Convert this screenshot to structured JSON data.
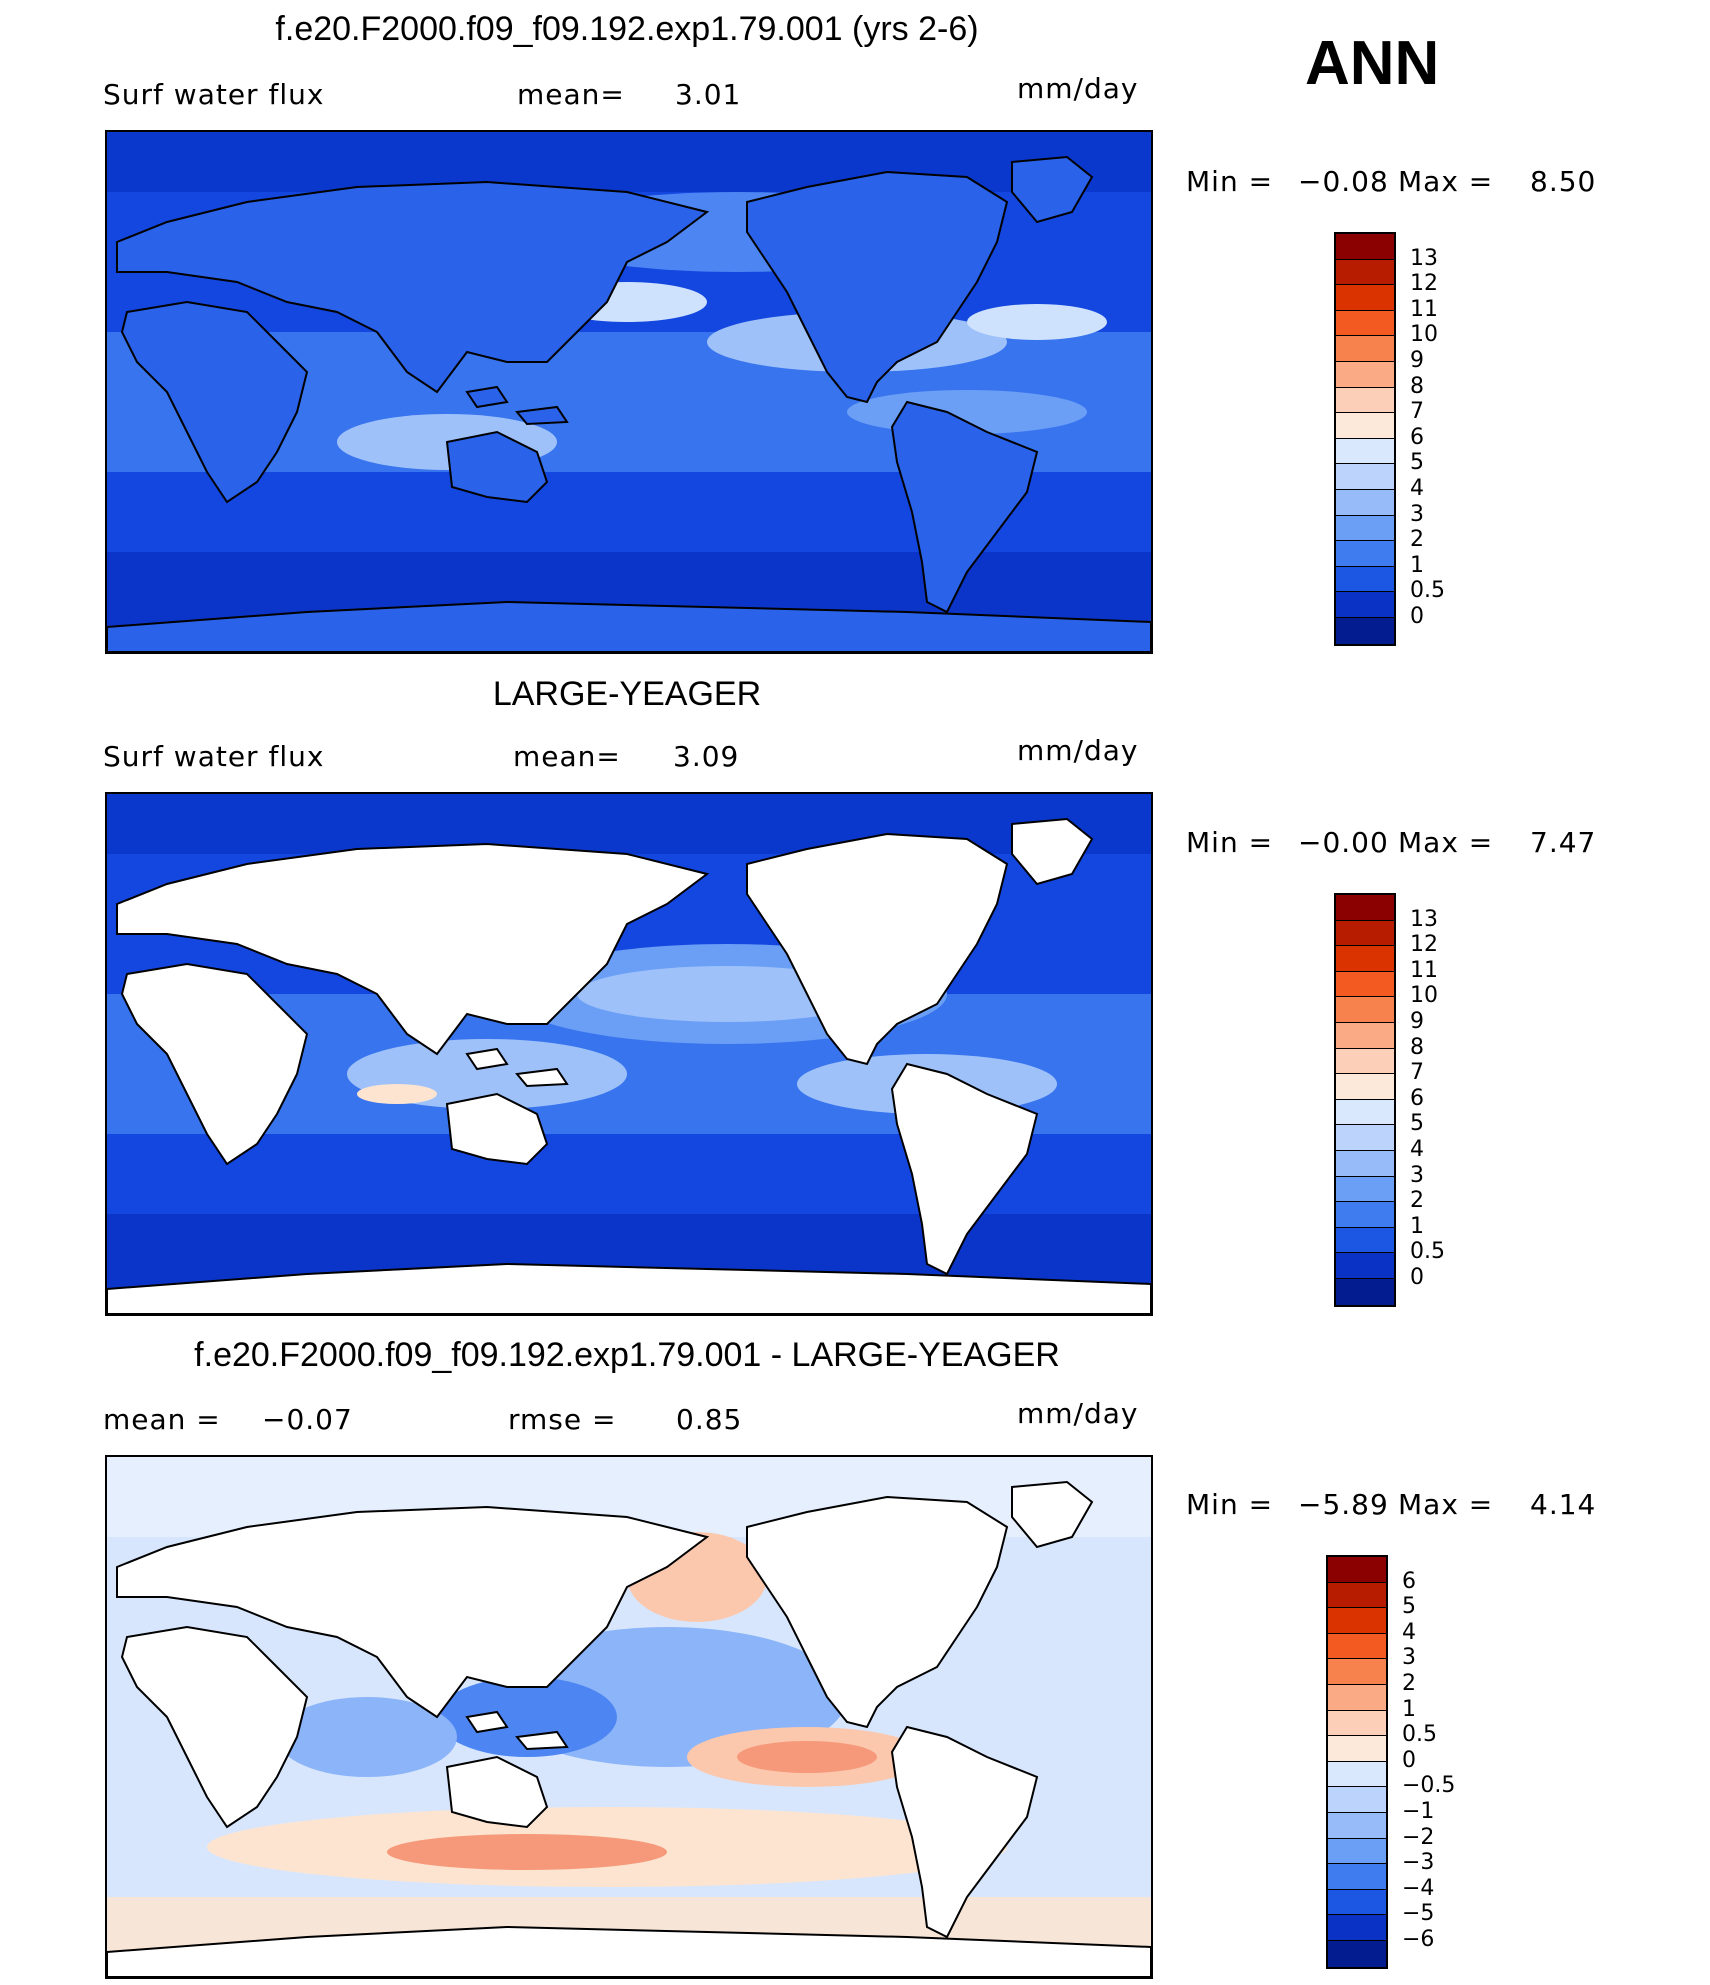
{
  "season": "ANN",
  "units": "mm/day",
  "panels": [
    {
      "title": "f.e20.F2000.f09_f09.192.exp1.79.001 (yrs 2-6)",
      "left_label": "Surf  water  flux",
      "stat_label": "mean=",
      "stat_value": "3.01",
      "minmax": {
        "min_label": "Min  =",
        "min": "−0.08",
        "max_label": "Max  =",
        "max": "8.50"
      },
      "ocean_base": "#1347e0",
      "blobs": [
        {
          "cx": 630,
          "cy": 100,
          "rx": 210,
          "ry": 40,
          "c": "#4d86f2"
        },
        {
          "cx": 750,
          "cy": 210,
          "rx": 150,
          "ry": 30,
          "c": "#9ec1fa"
        },
        {
          "cx": 340,
          "cy": 310,
          "rx": 110,
          "ry": 28,
          "c": "#9ec1fa"
        },
        {
          "cx": 860,
          "cy": 280,
          "rx": 120,
          "ry": 22,
          "c": "#6b9ff6"
        },
        {
          "cx": 520,
          "cy": 170,
          "rx": 80,
          "ry": 20,
          "c": "#cfe2fd"
        },
        {
          "cx": 930,
          "cy": 190,
          "rx": 70,
          "ry": 18,
          "c": "#cfe2fd"
        }
      ],
      "has_land_white": false
    },
    {
      "title": "LARGE-YEAGER",
      "left_label": "Surf  water  flux",
      "stat_label": "mean=",
      "stat_value": "3.09",
      "minmax": {
        "min_label": "Min  =",
        "min": "−0.00",
        "max_label": "Max  =",
        "max": "7.47"
      },
      "ocean_base": "#1347e0",
      "blobs": [
        {
          "cx": 620,
          "cy": 200,
          "rx": 220,
          "ry": 50,
          "c": "#6b9ff6"
        },
        {
          "cx": 620,
          "cy": 200,
          "rx": 150,
          "ry": 28,
          "c": "#9ec1fa"
        },
        {
          "cx": 380,
          "cy": 280,
          "rx": 140,
          "ry": 35,
          "c": "#9ec1fa"
        },
        {
          "cx": 820,
          "cy": 290,
          "rx": 130,
          "ry": 30,
          "c": "#9ec1fa"
        },
        {
          "cx": 290,
          "cy": 300,
          "rx": 40,
          "ry": 10,
          "c": "#fde4d0"
        }
      ],
      "has_land_white": true
    },
    {
      "title": "f.e20.F2000.f09_f09.192.exp1.79.001 - LARGE-YEAGER",
      "left_label": "mean  =",
      "left_value": "−0.07",
      "stat_label": "rmse  =",
      "stat_value": "0.85",
      "minmax": {
        "min_label": "Min  =",
        "min": "−5.89",
        "max_label": "Max  =",
        "max": "4.14"
      },
      "ocean_base": "#d7e6fd",
      "blobs": [
        {
          "cx": 560,
          "cy": 240,
          "rx": 180,
          "ry": 70,
          "c": "#8cb4f8"
        },
        {
          "cx": 420,
          "cy": 260,
          "rx": 90,
          "ry": 40,
          "c": "#4d86f2"
        },
        {
          "cx": 260,
          "cy": 280,
          "rx": 90,
          "ry": 40,
          "c": "#8cb4f8"
        },
        {
          "cx": 700,
          "cy": 300,
          "rx": 120,
          "ry": 30,
          "c": "#fbc8ae"
        },
        {
          "cx": 700,
          "cy": 300,
          "rx": 70,
          "ry": 16,
          "c": "#f6997a"
        },
        {
          "cx": 590,
          "cy": 120,
          "rx": 70,
          "ry": 45,
          "c": "#fbc8ae"
        },
        {
          "cx": 500,
          "cy": 390,
          "rx": 400,
          "ry": 40,
          "c": "#fde4d0"
        },
        {
          "cx": 420,
          "cy": 395,
          "rx": 140,
          "ry": 18,
          "c": "#f6997a"
        }
      ],
      "has_land_white": true
    }
  ],
  "colorbars": [
    {
      "colors": [
        "#8b0000",
        "#b71c00",
        "#db3300",
        "#f25a22",
        "#f8824d",
        "#fbaa86",
        "#fcd0b8",
        "#fde9da",
        "#d9e8fd",
        "#bcd3fb",
        "#96bbf8",
        "#6b9ff6",
        "#3f7cf0",
        "#1c57e4",
        "#0a32c4",
        "#031c8f"
      ],
      "labels": [
        "13",
        "12",
        "11",
        "10",
        "9",
        "8",
        "7",
        "6",
        "5",
        "4",
        "3",
        "2",
        "1",
        "0.5",
        "0"
      ]
    },
    {
      "colors": [
        "#8b0000",
        "#b71c00",
        "#db3300",
        "#f25a22",
        "#f8824d",
        "#fbaa86",
        "#fcd0b8",
        "#fde9da",
        "#d9e8fd",
        "#bcd3fb",
        "#96bbf8",
        "#6b9ff6",
        "#3f7cf0",
        "#1c57e4",
        "#0a32c4",
        "#031c8f"
      ],
      "labels": [
        "13",
        "12",
        "11",
        "10",
        "9",
        "8",
        "7",
        "6",
        "5",
        "4",
        "3",
        "2",
        "1",
        "0.5",
        "0"
      ]
    },
    {
      "colors": [
        "#8b0000",
        "#b71c00",
        "#db3300",
        "#f25a22",
        "#f8824d",
        "#fbaa86",
        "#fcd0b8",
        "#fde9da",
        "#d9e8fd",
        "#bcd3fb",
        "#96bbf8",
        "#6b9ff6",
        "#3f7cf0",
        "#1c57e4",
        "#0a32c4",
        "#031c8f"
      ],
      "labels": [
        "6",
        "5",
        "4",
        "3",
        "2",
        "1",
        "0.5",
        "0",
        "−0.5",
        "−1",
        "−2",
        "−3",
        "−4",
        "−5",
        "−6"
      ]
    }
  ]
}
